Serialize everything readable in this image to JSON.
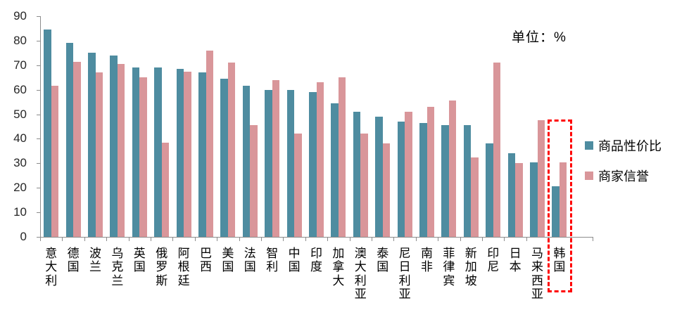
{
  "unit_label": "单位：%",
  "chart_data": {
    "type": "bar",
    "title": "",
    "unit_annotation": "单位：%",
    "categories": [
      "意大利",
      "德国",
      "波兰",
      "乌克兰",
      "英国",
      "俄罗斯",
      "阿根廷",
      "巴西",
      "美国",
      "法国",
      "智利",
      "中国",
      "印度",
      "加拿大",
      "澳大利亚",
      "泰国",
      "尼日利亚",
      "南非",
      "菲律宾",
      "新加坡",
      "印尼",
      "日本",
      "马来西亚",
      "韩国"
    ],
    "series": [
      {
        "name": "商品性价比",
        "color": "#4E8CA0",
        "values": [
          84.5,
          79,
          75,
          74,
          69,
          69,
          68.5,
          67,
          64.5,
          61.5,
          60,
          60,
          59,
          54.5,
          51,
          49,
          47,
          46.5,
          45.5,
          45.5,
          38,
          34,
          30.5,
          20.5
        ]
      },
      {
        "name": "商家信誉",
        "color": "#D9969A",
        "values": [
          61.5,
          71.5,
          67,
          70.5,
          65,
          38.5,
          67.5,
          76,
          71,
          45.5,
          64,
          42,
          63,
          65,
          42,
          38,
          51,
          53,
          55.5,
          32.5,
          71,
          30,
          47.5,
          30.5
        ]
      }
    ],
    "ylim": [
      0,
      90
    ],
    "yticks": [
      0,
      10,
      20,
      30,
      40,
      50,
      60,
      70,
      80,
      90
    ],
    "grid": false,
    "legend_position": "right",
    "highlight": {
      "category": "韩国",
      "color": "#FF0000"
    },
    "axis_color": "#8C8C8C"
  }
}
